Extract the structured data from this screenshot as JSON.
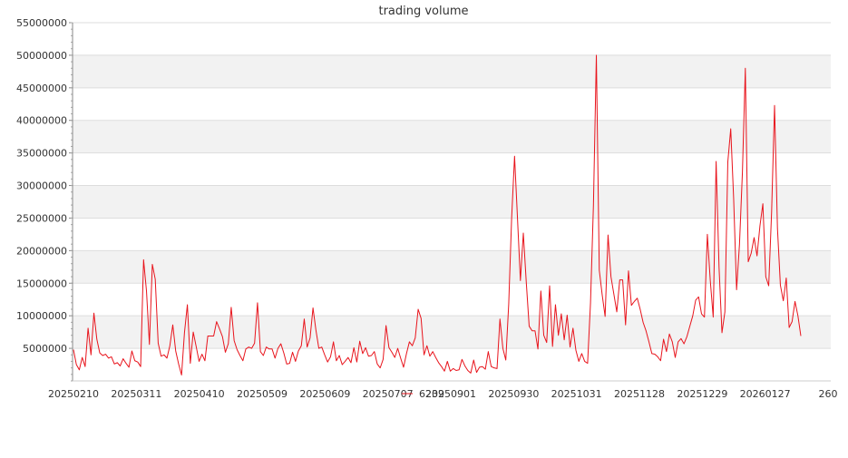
{
  "chart_data": {
    "type": "line",
    "title": "trading volume",
    "xlabel": "",
    "ylabel": "",
    "x_tick_labels": [
      "20250210",
      "20250311",
      "20250410",
      "20250509",
      "20250609",
      "20250707",
      "20250901",
      "20250930",
      "20251031",
      "20251128",
      "20251229",
      "20260127",
      "260"
    ],
    "y_tick_labels": [
      "5000000",
      "10000000",
      "15000000",
      "20000000",
      "25000000",
      "30000000",
      "35000000",
      "40000000",
      "45000000",
      "50000000",
      "55000000"
    ],
    "ylim": [
      0,
      55000000
    ],
    "grid": "horizontal alternating bands",
    "legend_position": "bottom-center",
    "series": [
      {
        "name": "6239",
        "color": "#e8141c",
        "values": [
          4800000,
          2500000,
          1700000,
          3600000,
          2200000,
          8100000,
          4000000,
          10400000,
          6400000,
          4300000,
          3900000,
          4100000,
          3500000,
          3700000,
          2600000,
          2800000,
          2300000,
          3400000,
          2700000,
          2100000,
          4600000,
          3100000,
          2900000,
          2200000,
          18600000,
          13800000,
          5600000,
          17900000,
          15600000,
          5800000,
          3800000,
          4000000,
          3500000,
          5400000,
          8600000,
          4600000,
          2600000,
          900000,
          7400000,
          11700000,
          2700000,
          7500000,
          5300000,
          3000000,
          4100000,
          3100000,
          6900000,
          6900000,
          6900000,
          9100000,
          8000000,
          6800000,
          4400000,
          5700000,
          11300000,
          6200000,
          4800000,
          3900000,
          3100000,
          4900000,
          5200000,
          5000000,
          5800000,
          12000000,
          4500000,
          3900000,
          5200000,
          4900000,
          4900000,
          3500000,
          5000000,
          5700000,
          4300000,
          2600000,
          2700000,
          4400000,
          3000000,
          4600000,
          5400000,
          9500000,
          5200000,
          6600000,
          11200000,
          7800000,
          5000000,
          5200000,
          4000000,
          2900000,
          3700000,
          6000000,
          3100000,
          3900000,
          2500000,
          3000000,
          3600000,
          2800000,
          5100000,
          2900000,
          6100000,
          4200000,
          5100000,
          3800000,
          3900000,
          4500000,
          2600000,
          2000000,
          3300000,
          8500000,
          5100000,
          4400000,
          3600000,
          5000000,
          3500000,
          2100000,
          4200000,
          6000000,
          5400000,
          6600000,
          11000000,
          9600000,
          4000000,
          5400000,
          3800000,
          4500000,
          3600000,
          2800000,
          2200000,
          1500000,
          3000000,
          1500000,
          1900000,
          1600000,
          1700000,
          3300000,
          2300000,
          1600000,
          1200000,
          3200000,
          1300000,
          2100000,
          2200000,
          1800000,
          4500000,
          2200000,
          2000000,
          1900000,
          9500000,
          5000000,
          3200000,
          11800000,
          25000000,
          34500000,
          25000000,
          15400000,
          22700000,
          15200000,
          8400000,
          7700000,
          7700000,
          4900000,
          13800000,
          7000000,
          5900000,
          14600000,
          5300000,
          11700000,
          7000000,
          10300000,
          6300000,
          10100000,
          5200000,
          8100000,
          4700000,
          3000000,
          4200000,
          3000000,
          2700000,
          12000000,
          27000000,
          50000000,
          17000000,
          13200000,
          9900000,
          22400000,
          16000000,
          13300000,
          10600000,
          15500000,
          15500000,
          8600000,
          16900000,
          11600000,
          12200000,
          12700000,
          11000000,
          9000000,
          7700000,
          6000000,
          4200000,
          4100000,
          3700000,
          3100000,
          6400000,
          4500000,
          7200000,
          6000000,
          3600000,
          6000000,
          6500000,
          5700000,
          6800000,
          8400000,
          10000000,
          12400000,
          12900000,
          10300000,
          9800000,
          22500000,
          15400000,
          9800000,
          33700000,
          17400000,
          7400000,
          10600000,
          33600000,
          38700000,
          28000000,
          14000000,
          21000000,
          32000000,
          48000000,
          18300000,
          19600000,
          22000000,
          19200000,
          23800000,
          27200000,
          16000000,
          14600000,
          26000000,
          42300000,
          23400000,
          14700000,
          12300000,
          15800000,
          8200000,
          9100000,
          12200000,
          10000000,
          6900000
        ]
      }
    ]
  }
}
